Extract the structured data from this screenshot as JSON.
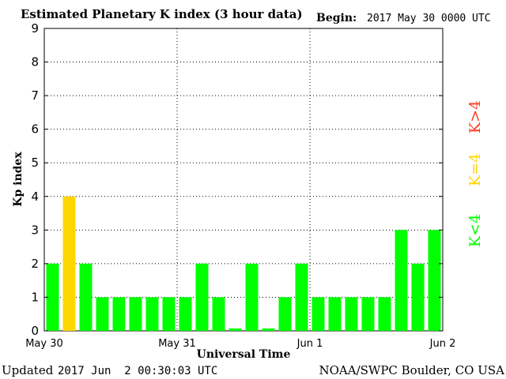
{
  "header": {
    "title": "Estimated Planetary K index (3 hour data)",
    "begin_label": "Begin:",
    "begin_value": "2017 May 30 0000 UTC"
  },
  "footer": {
    "updated_label": "Updated",
    "updated_value": "2017 Jun  2 00:30:03 UTC",
    "source": "NOAA/SWPC Boulder, CO USA"
  },
  "legend": {
    "above": "K>4",
    "equal": "K=4",
    "below": "K<4"
  },
  "colors": {
    "below": "#00ff00",
    "equal": "#ffd700",
    "above": "#ff3b1f",
    "grid": "#000000"
  },
  "chart_data": {
    "type": "bar",
    "title": "Estimated Planetary K index (3 hour data)",
    "xlabel": "Universal Time",
    "ylabel": "Kp index",
    "ylim": [
      0,
      9
    ],
    "yticks": [
      "0",
      "1",
      "2",
      "3",
      "4",
      "5",
      "6",
      "7",
      "8",
      "9"
    ],
    "xticks": [
      "May 30",
      "May 31",
      "Jun 1",
      "Jun 2"
    ],
    "grid": true,
    "values": [
      2,
      4,
      2,
      1,
      1,
      1,
      1,
      1,
      1,
      2,
      1,
      0,
      2,
      0,
      1,
      2,
      1,
      1,
      1,
      1,
      1,
      3,
      2,
      3
    ]
  }
}
